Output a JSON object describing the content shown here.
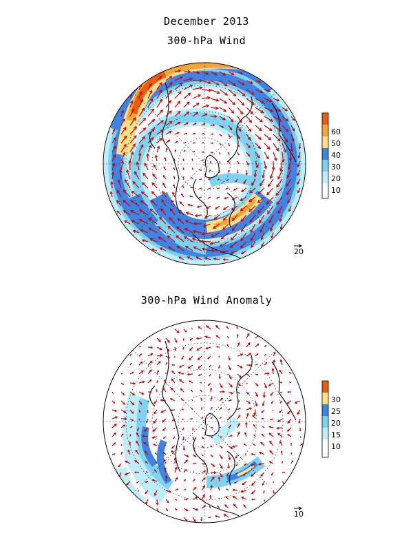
{
  "header": {
    "title": "December 2013",
    "subtitle": "300-hPa Wind"
  },
  "panels": [
    {
      "title": "",
      "colorbar_ticks": [
        "10",
        "20",
        "30",
        "40",
        "50",
        "60"
      ],
      "colorbar_colors": [
        "#ffffff",
        "#bdeefb",
        "#7fd3f2",
        "#3f84e2",
        "#fde08a",
        "#f3a43b",
        "#e65f10"
      ],
      "reference_vector_label": "20",
      "shading_colors": {
        "c1": "#bdeefb",
        "c2": "#7fd3f2",
        "c3": "#3f84e2",
        "c4": "#fde08a",
        "c5": "#f3a43b",
        "c6": "#e65f10"
      }
    },
    {
      "title": "300-hPa Wind Anomaly",
      "colorbar_ticks": [
        "10",
        "15",
        "20",
        "25",
        "30"
      ],
      "colorbar_colors": [
        "#ffffff",
        "#bdeefb",
        "#7fd3f2",
        "#3f84e2",
        "#fde08a",
        "#e65f10"
      ],
      "reference_vector_label": "10",
      "shading_colors": {
        "c1": "#bdeefb",
        "c2": "#7fd3f2",
        "c3": "#3f84e2",
        "c4": "#fde08a",
        "c5": "#f3a43b",
        "c6": "#e65f10"
      }
    }
  ],
  "colors": {
    "vector": "#cc0000",
    "coast": "#000000",
    "grid": "#000000"
  }
}
